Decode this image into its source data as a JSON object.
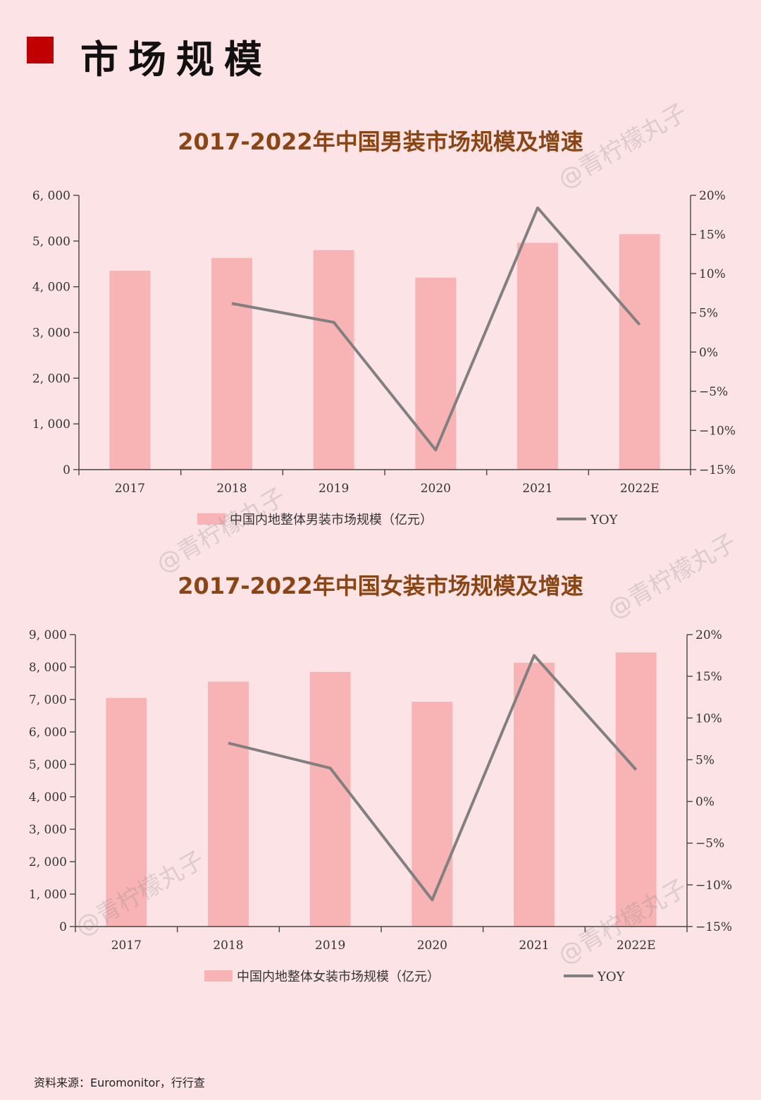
{
  "header": {
    "title": "市场规模"
  },
  "charts": [
    {
      "title": "2017-2022年中国男装市场规模及增速"
    },
    {
      "title": "2017-2022年中国女装市场规模及增速"
    }
  ],
  "chart_data": [
    {
      "type": "bar",
      "title": "2017-2022年中国男装市场规模及增速",
      "categories": [
        "2017",
        "2018",
        "2019",
        "2020",
        "2021",
        "2022E"
      ],
      "series": [
        {
          "name": "中国内地整体男装市场规模（亿元）",
          "type": "bar",
          "axis": "left",
          "values": [
            4350,
            4630,
            4800,
            4200,
            4960,
            5150
          ]
        },
        {
          "name": "YOY",
          "type": "line",
          "axis": "right",
          "values": [
            null,
            6.2,
            3.8,
            -12.5,
            18.4,
            3.5
          ]
        }
      ],
      "ylim": [
        0,
        6000
      ],
      "y2lim": [
        -15,
        20
      ],
      "yticks": [
        "0",
        "1, 000",
        "2, 000",
        "3, 000",
        "4, 000",
        "5, 000",
        "6, 000"
      ],
      "y2ticks": [
        "−15%",
        "−10%",
        "−5%",
        "0%",
        "5%",
        "10%",
        "15%",
        "20%"
      ],
      "colors": {
        "bar": "#f8b3b5",
        "line": "#808080"
      },
      "legend": "bottom",
      "grid": false
    },
    {
      "type": "bar",
      "title": "2017-2022年中国女装市场规模及增速",
      "categories": [
        "2017",
        "2018",
        "2019",
        "2020",
        "2021",
        "2022E"
      ],
      "series": [
        {
          "name": "中国内地整体女装市场规模（亿元）",
          "type": "bar",
          "axis": "left",
          "values": [
            7050,
            7550,
            7850,
            6930,
            8130,
            8450
          ]
        },
        {
          "name": "YOY",
          "type": "line",
          "axis": "right",
          "values": [
            null,
            7.0,
            4.0,
            -11.8,
            17.5,
            3.8
          ]
        }
      ],
      "ylim": [
        0,
        9000
      ],
      "y2lim": [
        -15,
        20
      ],
      "yticks": [
        "0",
        "1, 000",
        "2, 000",
        "3, 000",
        "4, 000",
        "5, 000",
        "6, 000",
        "7, 000",
        "8, 000",
        "9, 000"
      ],
      "y2ticks": [
        "−15%",
        "−10%",
        "−5%",
        "0%",
        "5%",
        "10%",
        "15%",
        "20%"
      ],
      "colors": {
        "bar": "#f8b3b5",
        "line": "#808080"
      },
      "legend": "bottom",
      "grid": false
    }
  ],
  "watermark": "@青柠檬丸子",
  "source": "资料来源：Euromonitor，行行查"
}
